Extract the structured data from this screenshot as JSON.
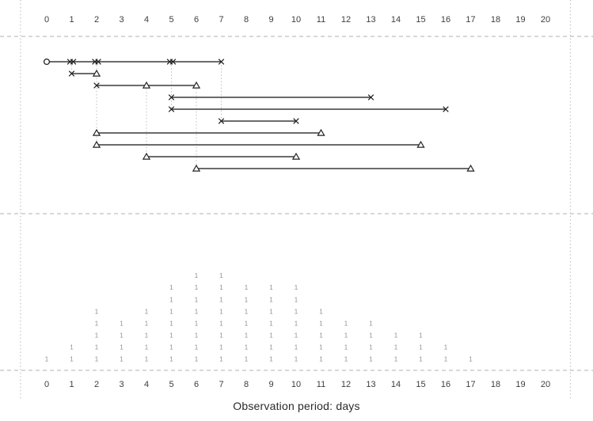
{
  "figure": {
    "xlabel": "Observation period: days",
    "colors": {
      "line": "#3a3a3a",
      "marker_stroke": "#222222",
      "marker_fill": "#ffffff",
      "frame_dash": "#b0b0b0",
      "frame_dot": "#c6c6c6",
      "connector_dot": "#bdbdbd",
      "tick_text": "#3d3d3d",
      "count_glyph": "#8f8f8f"
    }
  },
  "chart_data": [
    {
      "type": "line",
      "subtype": "event-history-timeline",
      "title": "",
      "xlabel": "Observation period: days",
      "ylabel": "",
      "x_ticks": [
        "0",
        "1",
        "2",
        "3",
        "4",
        "5",
        "6",
        "7",
        "8",
        "9",
        "10",
        "11",
        "12",
        "13",
        "14",
        "15",
        "16",
        "17",
        "18",
        "19",
        "20"
      ],
      "xlim": [
        -1,
        21
      ],
      "grid": "off",
      "legend": "none",
      "periods": [
        {
          "row": 1,
          "start": 0,
          "end": 7,
          "start_marker": "circle",
          "end_marker": "x",
          "events": [
            {
              "day": 1,
              "marker": "xx"
            },
            {
              "day": 2,
              "marker": "xx"
            },
            {
              "day": 5,
              "marker": "xx"
            }
          ]
        },
        {
          "row": 2,
          "start": 1,
          "end": 2,
          "start_marker": "x",
          "end_marker": "triangle",
          "events": []
        },
        {
          "row": 3,
          "start": 2,
          "end": 6,
          "start_marker": "x",
          "end_marker": "triangle",
          "events": [
            {
              "day": 4,
              "marker": "triangle"
            }
          ]
        },
        {
          "row": 4,
          "start": 5,
          "end": 13,
          "start_marker": "x",
          "end_marker": "x",
          "events": []
        },
        {
          "row": 5,
          "start": 5,
          "end": 16,
          "start_marker": "x",
          "end_marker": "x",
          "events": []
        },
        {
          "row": 6,
          "start": 7,
          "end": 10,
          "start_marker": "x",
          "end_marker": "x",
          "events": []
        },
        {
          "row": 7,
          "start": 2,
          "end": 11,
          "start_marker": "triangle",
          "end_marker": "triangle",
          "events": []
        },
        {
          "row": 8,
          "start": 2,
          "end": 15,
          "start_marker": "triangle",
          "end_marker": "triangle",
          "events": []
        },
        {
          "row": 9,
          "start": 4,
          "end": 10,
          "start_marker": "triangle",
          "end_marker": "triangle",
          "events": []
        },
        {
          "row": 10,
          "start": 6,
          "end": 17,
          "start_marker": "triangle",
          "end_marker": "triangle",
          "events": []
        }
      ],
      "connectors": [
        {
          "day": 1,
          "from_row": 1,
          "to_row": 2
        },
        {
          "day": 2,
          "from_row": 1,
          "to_row": 8
        },
        {
          "day": 4,
          "from_row": 3,
          "to_row": 9
        },
        {
          "day": 5,
          "from_row": 1,
          "to_row": 5
        },
        {
          "day": 6,
          "from_row": 3,
          "to_row": 10
        },
        {
          "day": 7,
          "from_row": 1,
          "to_row": 6
        }
      ],
      "frame": {
        "horizontal_dashed_y": [
          46,
          270,
          468
        ],
        "vertical_dotted_x_days": [
          -1.05,
          21.0
        ]
      }
    },
    {
      "type": "bar",
      "subtype": "stacked-text-glyph-counts",
      "glyph": "1",
      "title": "",
      "xlabel": "Observation period: days",
      "categories": [
        "0",
        "1",
        "2",
        "3",
        "4",
        "5",
        "6",
        "7",
        "8",
        "9",
        "10",
        "11",
        "12",
        "13",
        "14",
        "15",
        "16",
        "17"
      ],
      "values": [
        1,
        2,
        5,
        4,
        5,
        7,
        8,
        8,
        7,
        7,
        7,
        5,
        4,
        4,
        3,
        3,
        2,
        1
      ],
      "ylim": [
        0,
        8
      ]
    }
  ]
}
